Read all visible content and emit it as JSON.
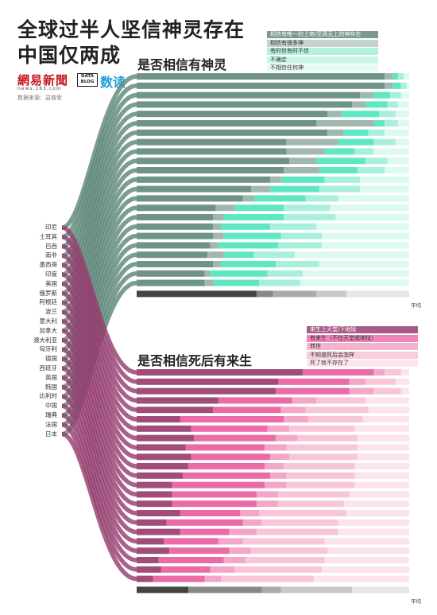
{
  "header": {
    "title_line1": "全球过半人坚信神灵存在",
    "title_line2": "中国仅两成",
    "logo_text": "網易新聞",
    "logo_url": "news.163.com",
    "source": "数据来源：益普索",
    "datablog_line1": "DATA",
    "datablog_line2": "BLOG",
    "section_label": "数读"
  },
  "colors": {
    "god": [
      "#6f9485",
      "#a2b8ae",
      "#5fe7c3",
      "#a9f0dc",
      "#ddfaf1"
    ],
    "god_avg": [
      "#444444",
      "#888888",
      "#aaaaaa",
      "#c9c9c9",
      "#e6e6e6"
    ],
    "after": [
      "#a04d7b",
      "#eb6ba8",
      "#f3a6c7",
      "#f8c6d8",
      "#fbe4ec"
    ],
    "after_avg": [
      "#444444",
      "#888888",
      "#aaaaaa",
      "#c9c9c9",
      "#e6e6e6"
    ],
    "connector_god": "#5f887a",
    "connector_after": "#953e6f"
  },
  "countries": [
    "印尼",
    "土耳其",
    "巴西",
    "南非",
    "墨西哥",
    "印度",
    "美国",
    "俄罗斯",
    "阿根廷",
    "波兰",
    "意大利",
    "加拿大",
    "澳大利亚",
    "匈牙利",
    "德国",
    "西班牙",
    "英国",
    "韩国",
    "比利时",
    "中国",
    "瑞典",
    "法国",
    "日本"
  ],
  "chart_data": [
    {
      "type": "bar",
      "stacked": true,
      "orientation": "horizontal",
      "title": "是否相信有神灵",
      "total_label": "平均",
      "xlim": [
        0,
        100
      ],
      "rows": 23,
      "series": [
        {
          "name": "相信有唯一的上帝/至高无上的神存在",
          "values": [
            91,
            91,
            82,
            79,
            70,
            66,
            70,
            55,
            55,
            56,
            54,
            49,
            42,
            39,
            29,
            28,
            28,
            28,
            27,
            26,
            28,
            25,
            25
          ]
        },
        {
          "name": "相信有很多神",
          "values": [
            3,
            3,
            5,
            5,
            5,
            21,
            6,
            19,
            14,
            10,
            13,
            4,
            7,
            4,
            7,
            4,
            3,
            4,
            3,
            6,
            3,
            2,
            3
          ]
        },
        {
          "name": "有时信有时不信",
          "values": [
            2,
            3,
            6,
            8,
            14,
            4,
            9,
            13,
            11,
            18,
            14,
            16,
            18,
            19,
            18,
            22,
            18,
            21,
            22,
            11,
            20,
            21,
            17
          ]
        },
        {
          "name": "不确定",
          "values": [
            2,
            2,
            4,
            4,
            6,
            5,
            6,
            8,
            7,
            8,
            10,
            13,
            15,
            12,
            17,
            19,
            17,
            15,
            16,
            15,
            16,
            13,
            15
          ]
        },
        {
          "name": "不相信任何神",
          "values": [
            2,
            1,
            3,
            4,
            5,
            4,
            9,
            5,
            13,
            8,
            9,
            18,
            18,
            26,
            29,
            27,
            34,
            32,
            32,
            42,
            33,
            39,
            40
          ]
        }
      ],
      "average": [
        44,
        6,
        16,
        11,
        23
      ]
    },
    {
      "type": "bar",
      "stacked": true,
      "orientation": "horizontal",
      "title": "是否相信死后有来生",
      "total_label": "平均",
      "xlim": [
        0,
        100
      ],
      "rows": 23,
      "series": [
        {
          "name": "来生上天堂/下地狱",
          "values": [
            61,
            52,
            51,
            30,
            28,
            16,
            20,
            21,
            18,
            20,
            19,
            17,
            13,
            13,
            13,
            16,
            11,
            16,
            10,
            12,
            8,
            9,
            6
          ]
        },
        {
          "name": "有来生（不在天堂或地狱）",
          "values": [
            26,
            26,
            27,
            27,
            25,
            38,
            28,
            30,
            29,
            29,
            28,
            32,
            34,
            31,
            31,
            22,
            28,
            18,
            20,
            22,
            24,
            18,
            19
          ]
        },
        {
          "name": "转世",
          "values": [
            4,
            6,
            9,
            9,
            9,
            9,
            8,
            8,
            8,
            7,
            7,
            6,
            8,
            8,
            8,
            7,
            7,
            10,
            9,
            8,
            8,
            9,
            6
          ]
        },
        {
          "name": "不知道死后会怎样",
          "values": [
            6,
            11,
            10,
            18,
            23,
            20,
            24,
            22,
            26,
            25,
            26,
            25,
            25,
            26,
            24,
            32,
            28,
            30,
            30,
            28,
            29,
            32,
            34
          ]
        },
        {
          "name": "死了就不存在了",
          "values": [
            3,
            5,
            3,
            16,
            15,
            17,
            20,
            19,
            19,
            19,
            20,
            20,
            20,
            22,
            24,
            23,
            26,
            26,
            31,
            30,
            31,
            32,
            35
          ]
        }
      ],
      "average": [
        19,
        27,
        7,
        26,
        21
      ]
    }
  ]
}
